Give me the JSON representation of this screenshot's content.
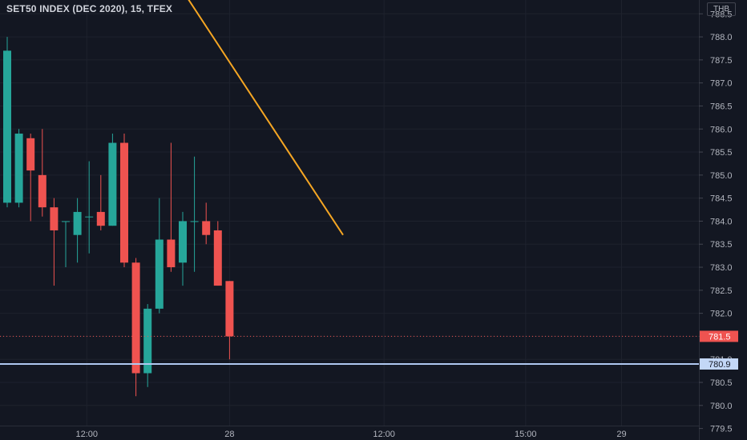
{
  "header": {
    "title": "SET50 INDEX (DEC 2020), 15, TFEX",
    "currency": "THB"
  },
  "colors": {
    "background": "#131722",
    "grid": "#1e222d",
    "up": "#26a69a",
    "down": "#ef5350",
    "trendline": "#f5a623",
    "horizontal_line": "#b0c8f0",
    "last_price": "#ef5350",
    "text": "#b2b5be"
  },
  "chart_data": {
    "type": "candlestick",
    "title": "SET50 INDEX (DEC 2020), 15, TFEX",
    "ylim": [
      779.25,
      788.8
    ],
    "y_ticks": [
      "779.5",
      "780.0",
      "780.5",
      "781.0",
      "781.5",
      "782.0",
      "782.5",
      "783.0",
      "783.5",
      "784.0",
      "784.5",
      "785.0",
      "785.5",
      "786.0",
      "786.5",
      "787.0",
      "787.5",
      "788.0",
      "788.5"
    ],
    "x_ticks": [
      {
        "label": "12:00",
        "bar": 6.8
      },
      {
        "label": "28",
        "bar": 19.0
      },
      {
        "label": "12:00",
        "bar": 32.2
      },
      {
        "label": "15:00",
        "bar": 44.3
      },
      {
        "label": "29",
        "bar": 52.5
      }
    ],
    "candles": [
      {
        "open": 784.4,
        "high": 788.0,
        "low": 784.3,
        "close": 787.7
      },
      {
        "open": 784.4,
        "high": 786.0,
        "low": 784.3,
        "close": 785.9
      },
      {
        "open": 785.8,
        "high": 785.9,
        "low": 784.0,
        "close": 785.1
      },
      {
        "open": 785.0,
        "high": 786.0,
        "low": 784.1,
        "close": 784.3
      },
      {
        "open": 784.3,
        "high": 784.5,
        "low": 782.6,
        "close": 783.8
      },
      {
        "open": 784.0,
        "high": 784.0,
        "low": 783.0,
        "close": 784.0
      },
      {
        "open": 783.7,
        "high": 784.5,
        "low": 783.1,
        "close": 784.2
      },
      {
        "open": 784.1,
        "high": 785.3,
        "low": 783.3,
        "close": 784.1
      },
      {
        "open": 784.2,
        "high": 785.0,
        "low": 783.8,
        "close": 783.9
      },
      {
        "open": 783.9,
        "high": 785.9,
        "low": 783.9,
        "close": 785.7
      },
      {
        "open": 785.7,
        "high": 785.9,
        "low": 783.0,
        "close": 783.1
      },
      {
        "open": 783.1,
        "high": 783.2,
        "low": 780.2,
        "close": 780.7
      },
      {
        "open": 780.7,
        "high": 782.2,
        "low": 780.4,
        "close": 782.1
      },
      {
        "open": 782.1,
        "high": 784.5,
        "low": 782.0,
        "close": 783.6
      },
      {
        "open": 783.6,
        "high": 785.7,
        "low": 782.9,
        "close": 783.0
      },
      {
        "open": 783.1,
        "high": 784.2,
        "low": 782.6,
        "close": 784.0
      },
      {
        "open": 784.0,
        "high": 785.4,
        "low": 782.9,
        "close": 784.0
      },
      {
        "open": 784.0,
        "high": 784.4,
        "low": 783.5,
        "close": 783.7
      },
      {
        "open": 783.8,
        "high": 784.0,
        "low": 782.6,
        "close": 782.6
      },
      {
        "open": 782.7,
        "high": 782.7,
        "low": 781.0,
        "close": 781.5
      }
    ],
    "trendline": {
      "from": {
        "bar": 15.0,
        "price": 789.0
      },
      "to": {
        "bar": 28.7,
        "price": 783.7
      }
    },
    "horizontal_line": {
      "price": 780.9,
      "label": "780.9"
    },
    "last_price": {
      "price": 781.5,
      "label": "781.5"
    }
  }
}
